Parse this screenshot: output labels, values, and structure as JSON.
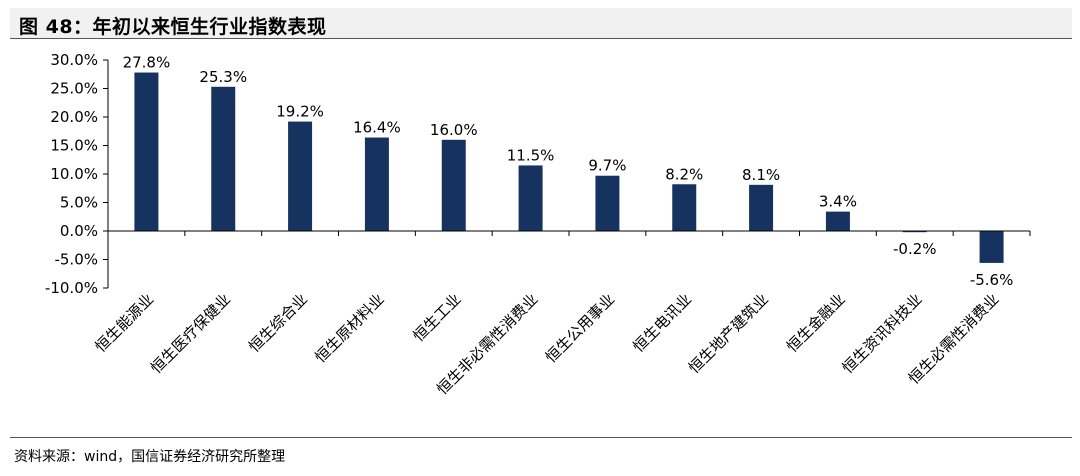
{
  "title": "图 48：年初以来恒生行业指数表现",
  "source": "资料来源：wind，国信证券经济研究所整理",
  "colors": {
    "bar": "#16335f",
    "axis": "#000000"
  },
  "chart_data": {
    "type": "bar",
    "categories": [
      "恒生能源业",
      "恒生医疗保健业",
      "恒生综合业",
      "恒生原材料业",
      "恒生工业",
      "恒生非必需性消费业",
      "恒生公用事业",
      "恒生电讯业",
      "恒生地产建筑业",
      "恒生金融业",
      "恒生资讯科技业",
      "恒生必需性消费业"
    ],
    "values": [
      27.8,
      25.3,
      19.2,
      16.4,
      16.0,
      11.5,
      9.7,
      8.2,
      8.1,
      3.4,
      -0.2,
      -5.6
    ],
    "value_labels": [
      "27.8%",
      "25.3%",
      "19.2%",
      "16.4%",
      "16.0%",
      "11.5%",
      "9.7%",
      "8.2%",
      "8.1%",
      "3.4%",
      "-0.2%",
      "-5.6%"
    ],
    "yticks": [
      30,
      25,
      20,
      15,
      10,
      5,
      0,
      -5,
      -10
    ],
    "ytick_labels": [
      "30.0%",
      "25.0%",
      "20.0%",
      "15.0%",
      "10.0%",
      "5.0%",
      "0.0%",
      "-5.0%",
      "-10.0%"
    ],
    "ylim": [
      -10,
      30
    ],
    "legend": "none",
    "grid": false
  }
}
